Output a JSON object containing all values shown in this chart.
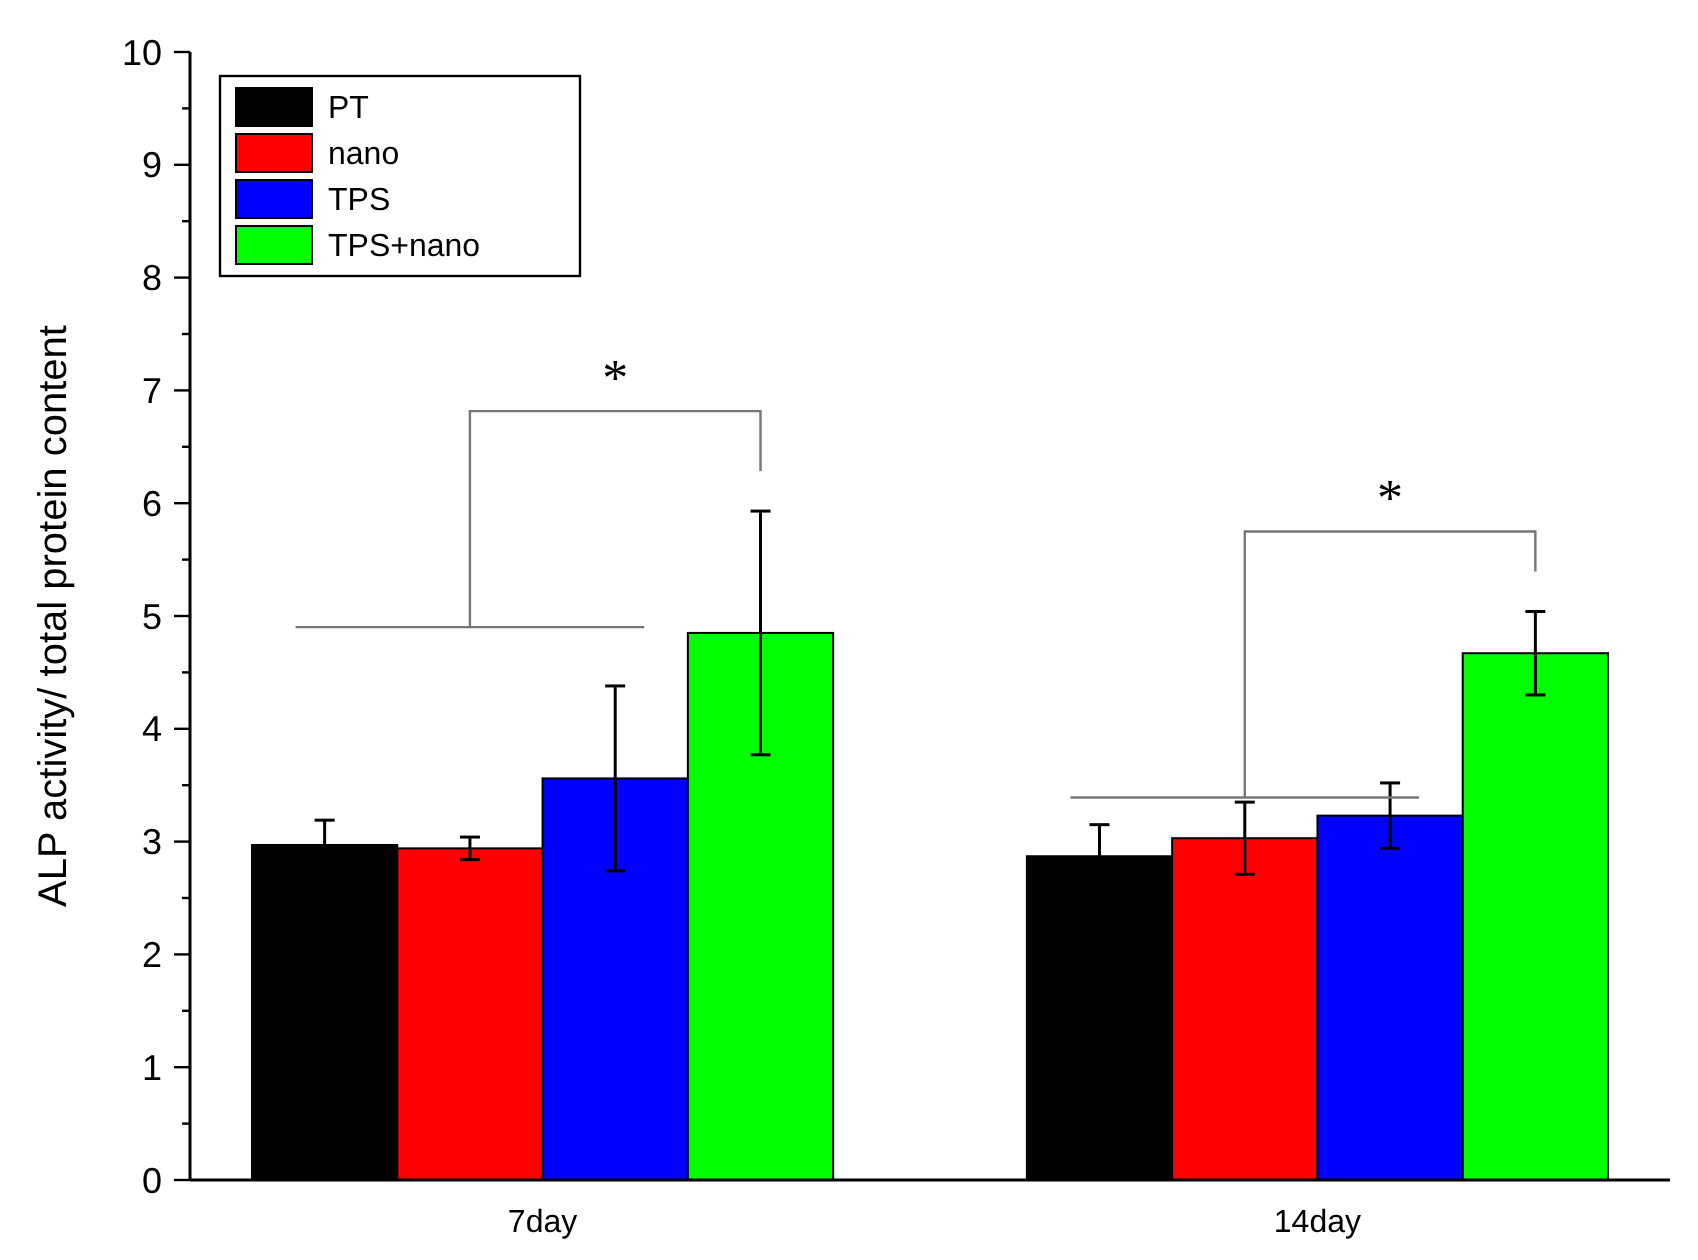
{
  "chart_data": {
    "type": "bar",
    "ylabel": "ALP activity/ total protein content",
    "categories": [
      "7day",
      "14day"
    ],
    "series": [
      {
        "name": "PT",
        "color": "#000000",
        "values": [
          2.97,
          2.87
        ],
        "errors": [
          0.22,
          0.28
        ]
      },
      {
        "name": "nano",
        "color": "#ff0000",
        "values": [
          2.94,
          3.03
        ],
        "errors": [
          0.1,
          0.32
        ]
      },
      {
        "name": "TPS",
        "color": "#0000ff",
        "values": [
          3.56,
          3.23
        ],
        "errors": [
          0.82,
          0.29
        ]
      },
      {
        "name": "TPS+nano",
        "color": "#00ff00",
        "values": [
          4.85,
          4.67
        ],
        "errors": [
          1.08,
          0.37
        ]
      }
    ],
    "ylim": [
      0,
      10
    ],
    "yticks": [
      0,
      {
        "value": 0.5,
        "label": null
      },
      1,
      {
        "value": 1.5,
        "label": null
      },
      2,
      {
        "value": 2.5,
        "label": null
      },
      3,
      {
        "value": 3.5,
        "label": null
      },
      4,
      {
        "value": 4.5,
        "label": null
      },
      5,
      {
        "value": 5.5,
        "label": null
      },
      6,
      {
        "value": 6.5,
        "label": null
      },
      7,
      {
        "value": 7.5,
        "label": null
      },
      8,
      {
        "value": 8.5,
        "label": null
      },
      9,
      {
        "value": 9.5,
        "label": null
      },
      10
    ],
    "legend": "top left",
    "grid": false,
    "annotations": [
      "*",
      "*"
    ]
  }
}
